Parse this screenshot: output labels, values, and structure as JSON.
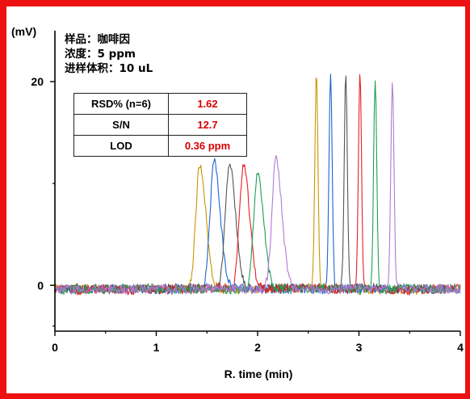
{
  "sample_info": {
    "sample": "样品：咖啡因",
    "concentration": "浓度：5 ppm",
    "injection": "进样体积：10 uL"
  },
  "stats_table": {
    "rows": [
      {
        "label": "RSD% (n=6)",
        "value": "1.62"
      },
      {
        "label": "S/N",
        "value": "12.7"
      },
      {
        "label": "LOD",
        "value": "0.36 ppm"
      }
    ],
    "value_color": "#d40000"
  },
  "chart_data": {
    "type": "line",
    "title": "",
    "xlabel": "R. time (min)",
    "ylabel": "(mV)",
    "xlim": [
      0,
      4
    ],
    "ylim": [
      -4.5,
      25
    ],
    "x_ticks": [
      0,
      1,
      2,
      3,
      4
    ],
    "y_ticks": [
      0,
      20
    ],
    "grid": false,
    "frame_color": "#ee1111",
    "series": [
      {
        "color": "#c99700",
        "peak_rt": 1.43,
        "peak_height": 12.2,
        "peak_rt_2": 2.58,
        "peak_height_2": 21.0
      },
      {
        "color": "#1a66cc",
        "peak_rt": 1.57,
        "peak_height": 12.4,
        "peak_rt_2": 2.72,
        "peak_height_2": 21.0
      },
      {
        "color": "#555555",
        "peak_rt": 1.72,
        "peak_height": 12.3,
        "peak_rt_2": 2.87,
        "peak_height_2": 20.8
      },
      {
        "color": "#e62020",
        "peak_rt": 1.86,
        "peak_height": 12.1,
        "peak_rt_2": 3.01,
        "peak_height_2": 21.1
      },
      {
        "color": "#1f9e55",
        "peak_rt": 2.0,
        "peak_height": 11.2,
        "peak_rt_2": 3.16,
        "peak_height_2": 20.8
      },
      {
        "color": "#b07ad8",
        "peak_rt": 2.18,
        "peak_height": 13.0,
        "peak_rt_2": 3.33,
        "peak_height_2": 20.3
      }
    ]
  }
}
